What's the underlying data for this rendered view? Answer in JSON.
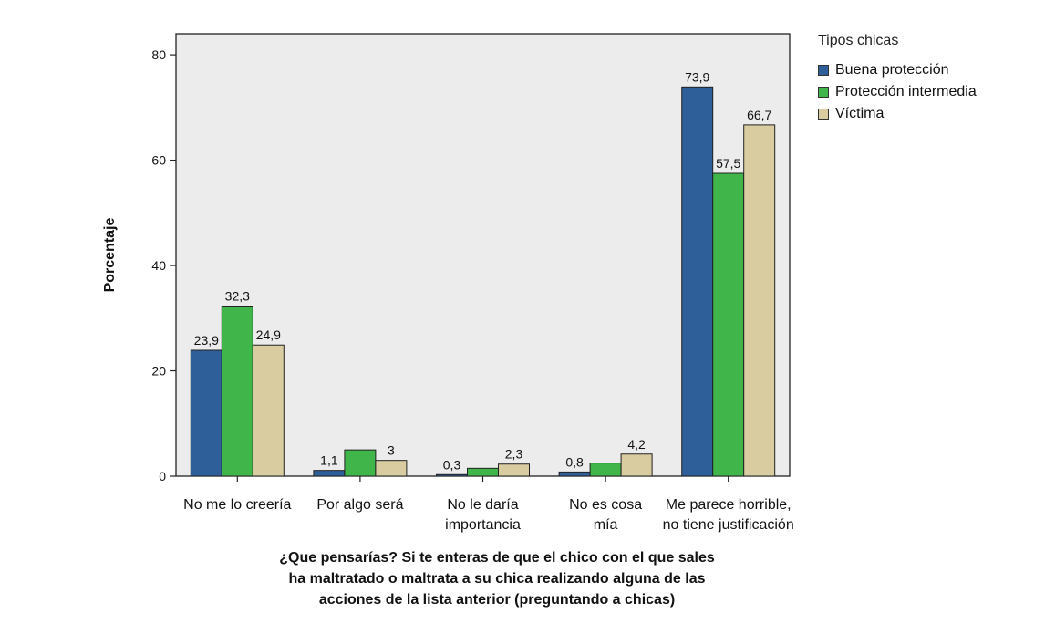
{
  "chart_data": {
    "type": "bar",
    "title": "",
    "ylabel": "Porcentaje",
    "xlabel": "¿Que pensarías? Si te enteras de que el chico con el que sales\nha maltratado o maltrata a su chica realizando alguna de las\nacciones de la lista anterior (preguntando a chicas)",
    "ylim": [
      0,
      84
    ],
    "yticks": [
      "0",
      "20",
      "40",
      "60",
      "80"
    ],
    "grid": false,
    "legend_position": "right",
    "legend_title": "Tipos chicas",
    "categories": [
      [
        "No me lo creería"
      ],
      [
        "Por algo será"
      ],
      [
        "No le daría",
        "importancia"
      ],
      [
        "No es cosa",
        "mía"
      ],
      [
        "Me parece horrible,",
        "no tiene justificación"
      ]
    ],
    "series": [
      {
        "name": "Buena protección",
        "color": "#2e5f98",
        "values": [
          23.9,
          1.1,
          0.3,
          0.8,
          73.9
        ],
        "labels": [
          "23,9",
          "1,1",
          "0,3",
          "0,8",
          "73,9"
        ]
      },
      {
        "name": "Protección intermedia",
        "color": "#3fb54a",
        "values": [
          32.3,
          5.0,
          1.5,
          2.5,
          57.5
        ],
        "labels": [
          "32,3",
          "",
          "",
          "",
          "57,5"
        ]
      },
      {
        "name": "Víctima",
        "color": "#d8cca0",
        "values": [
          24.9,
          3.0,
          2.3,
          4.2,
          66.7
        ],
        "labels": [
          "24,9",
          "3",
          "2,3",
          "4,2",
          "66,7"
        ]
      }
    ],
    "plot_background": "#ececec"
  }
}
